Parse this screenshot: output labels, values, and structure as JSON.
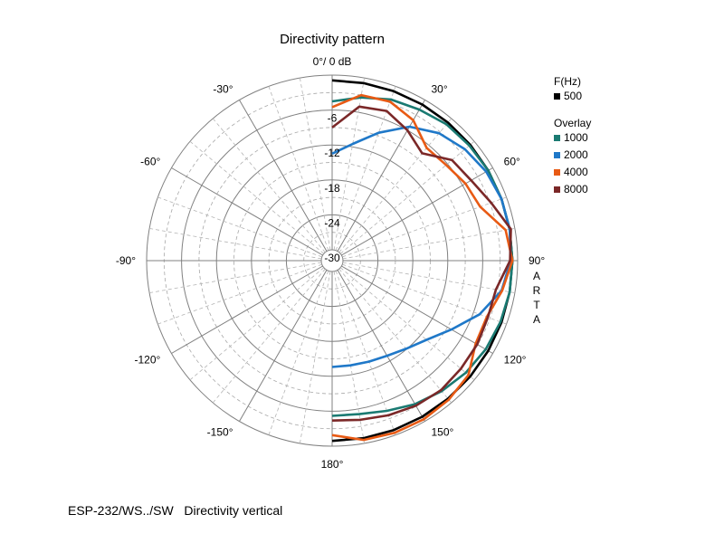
{
  "chart_data": {
    "type": "polar",
    "title": "Directivity pattern",
    "top_label": "0°/ 0 dB",
    "rlim": [
      -30,
      0
    ],
    "radial_ticks": [
      "-6",
      "-12",
      "-18",
      "-24",
      "-30"
    ],
    "radial_values": [
      -6,
      -12,
      -18,
      -24,
      -30
    ],
    "angle_ticks": [
      "30°",
      "60°",
      "90°",
      "120°",
      "150°",
      "180°",
      "-150°",
      "-120°",
      "-90°",
      "-60°",
      "-30°"
    ],
    "angle_values": [
      30,
      60,
      90,
      120,
      150,
      180,
      -150,
      -120,
      -90,
      -60,
      -30
    ],
    "grid": true,
    "side_text": "ARTA",
    "legend": {
      "header": "F(Hz)",
      "overlay_header": "Overlay",
      "placement": "right"
    },
    "angles": [
      0,
      10,
      20,
      30,
      40,
      50,
      60,
      70,
      80,
      90,
      100,
      110,
      120,
      130,
      140,
      150,
      160,
      170,
      180
    ],
    "series": [
      {
        "name": "500",
        "color": "#000000",
        "group": "main",
        "values": [
          -0.9,
          -0.9,
          -0.9,
          -0.9,
          -0.9,
          -0.9,
          -0.9,
          -0.9,
          -0.9,
          -0.9,
          -0.9,
          -0.9,
          -0.9,
          -0.9,
          -0.9,
          -0.9,
          -0.9,
          -0.9,
          -0.9
        ]
      },
      {
        "name": "1000",
        "color": "#1a7a72",
        "group": "overlay",
        "values": [
          -4.5,
          -3.4,
          -2.4,
          -1.9,
          -1.3,
          -1.1,
          -0.9,
          -0.9,
          -0.9,
          -0.9,
          -0.9,
          -1.1,
          -1.4,
          -1.9,
          -2.6,
          -3.4,
          -4.4,
          -5.1,
          -5.2
        ]
      },
      {
        "name": "2000",
        "color": "#1f78c8",
        "group": "overlay",
        "values": [
          -13.5,
          -11.5,
          -8.5,
          -5.3,
          -3.3,
          -2.1,
          -1.3,
          -0.9,
          -0.9,
          -1.2,
          -2.3,
          -4.9,
          -8.2,
          -10.7,
          -12.1,
          -13.0,
          -13.4,
          -13.6,
          -13.6
        ]
      },
      {
        "name": "4000",
        "color": "#e85a14",
        "group": "overlay",
        "values": [
          -5.5,
          -3.0,
          -2.8,
          -4.0,
          -6.6,
          -6.3,
          -5.4,
          -4.8,
          -1.6,
          -0.9,
          -2.2,
          -3.6,
          -3.4,
          -1.3,
          -0.7,
          -0.4,
          -0.4,
          -0.6,
          -1.9
        ]
      },
      {
        "name": "8000",
        "color": "#7b2828",
        "group": "overlay",
        "values": [
          -9.0,
          -5.0,
          -4.5,
          -6.0,
          -7.8,
          -5.0,
          -4.3,
          -2.8,
          -0.7,
          -1.3,
          -3.3,
          -3.4,
          -3.1,
          -3.0,
          -2.8,
          -3.1,
          -3.6,
          -4.1,
          -4.4
        ]
      }
    ]
  },
  "caption": "ESP-232/WS../SW   Directivity vertical"
}
